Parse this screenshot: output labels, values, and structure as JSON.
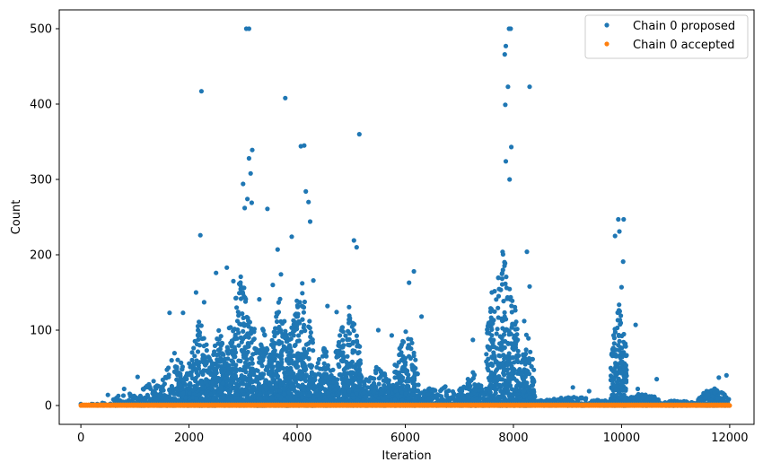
{
  "chart_data": {
    "type": "scatter",
    "xlabel": "Iteration",
    "ylabel": "Count",
    "xlim": [
      -400,
      12450
    ],
    "ylim": [
      -25,
      525
    ],
    "x_ticks": [
      0,
      2000,
      4000,
      6000,
      8000,
      10000,
      12000
    ],
    "y_ticks": [
      0,
      100,
      200,
      300,
      400,
      500
    ],
    "legend_position": "top-right",
    "series": [
      {
        "name": "Chain 0 proposed",
        "color": "#1f77b4",
        "points": [
          [
            2230,
            417
          ],
          [
            3060,
            500
          ],
          [
            3110,
            500
          ],
          [
            3170,
            339
          ],
          [
            3140,
            308
          ],
          [
            3110,
            328
          ],
          [
            3000,
            294
          ],
          [
            3080,
            274
          ],
          [
            3160,
            269
          ],
          [
            3450,
            261
          ],
          [
            3780,
            408
          ],
          [
            4070,
            344
          ],
          [
            4130,
            345
          ],
          [
            4160,
            284
          ],
          [
            4210,
            270
          ],
          [
            4240,
            244
          ],
          [
            5150,
            360
          ],
          [
            5050,
            219
          ],
          [
            5100,
            210
          ],
          [
            6160,
            178
          ],
          [
            6070,
            163
          ],
          [
            7840,
            466
          ],
          [
            7860,
            477
          ],
          [
            7920,
            500
          ],
          [
            7950,
            500
          ],
          [
            7900,
            423
          ],
          [
            7850,
            399
          ],
          [
            7960,
            343
          ],
          [
            7860,
            324
          ],
          [
            8300,
            423
          ],
          [
            7930,
            300
          ],
          [
            8250,
            204
          ],
          [
            9940,
            247
          ],
          [
            10040,
            247
          ],
          [
            10030,
            191
          ],
          [
            9880,
            225
          ],
          [
            9960,
            231
          ],
          [
            2210,
            226
          ],
          [
            3030,
            262
          ],
          [
            3640,
            207
          ],
          [
            3700,
            174
          ],
          [
            3900,
            224
          ],
          [
            1640,
            123
          ],
          [
            1890,
            123
          ],
          [
            2130,
            150
          ],
          [
            2280,
            137
          ],
          [
            2500,
            176
          ],
          [
            2700,
            183
          ],
          [
            2820,
            165
          ],
          [
            3300,
            141
          ],
          [
            3550,
            160
          ],
          [
            4300,
            166
          ],
          [
            4560,
            132
          ],
          [
            4730,
            124
          ],
          [
            5500,
            100
          ],
          [
            5750,
            93
          ],
          [
            6300,
            118
          ],
          [
            7250,
            87
          ],
          [
            7600,
            150
          ],
          [
            8300,
            158
          ],
          [
            8200,
            112
          ],
          [
            10260,
            107
          ],
          [
            10000,
            157
          ],
          [
            9400,
            19
          ],
          [
            9100,
            24
          ],
          [
            10300,
            22
          ],
          [
            10650,
            35
          ],
          [
            11800,
            37
          ],
          [
            11940,
            40
          ],
          [
            1050,
            38
          ],
          [
            800,
            22
          ],
          [
            500,
            14
          ]
        ],
        "clusters": [
          {
            "start": 0,
            "end": 600,
            "max": 5,
            "n": 40
          },
          {
            "start": 600,
            "end": 1100,
            "max": 20,
            "n": 70
          },
          {
            "start": 1100,
            "end": 1500,
            "max": 40,
            "n": 110
          },
          {
            "start": 1500,
            "end": 2000,
            "max": 75,
            "n": 200
          },
          {
            "start": 2000,
            "end": 2400,
            "max": 120,
            "n": 260
          },
          {
            "start": 2400,
            "end": 2700,
            "max": 110,
            "n": 220
          },
          {
            "start": 2700,
            "end": 3250,
            "max": 180,
            "n": 420
          },
          {
            "start": 3250,
            "end": 3500,
            "max": 110,
            "n": 200
          },
          {
            "start": 3500,
            "end": 3850,
            "max": 150,
            "n": 300
          },
          {
            "start": 3850,
            "end": 4300,
            "max": 170,
            "n": 360
          },
          {
            "start": 4300,
            "end": 4700,
            "max": 80,
            "n": 220
          },
          {
            "start": 4700,
            "end": 5200,
            "max": 140,
            "n": 340
          },
          {
            "start": 5200,
            "end": 5800,
            "max": 55,
            "n": 250
          },
          {
            "start": 5800,
            "end": 6250,
            "max": 110,
            "n": 260
          },
          {
            "start": 6250,
            "end": 7000,
            "max": 30,
            "n": 180
          },
          {
            "start": 7000,
            "end": 7500,
            "max": 45,
            "n": 200
          },
          {
            "start": 7500,
            "end": 8100,
            "max": 210,
            "n": 460
          },
          {
            "start": 8100,
            "end": 8400,
            "max": 100,
            "n": 200
          },
          {
            "start": 8400,
            "end": 9800,
            "max": 12,
            "n": 220
          },
          {
            "start": 9800,
            "end": 10100,
            "max": 140,
            "n": 260
          },
          {
            "start": 10100,
            "end": 10700,
            "max": 18,
            "n": 140
          },
          {
            "start": 10700,
            "end": 11400,
            "max": 8,
            "n": 100
          },
          {
            "start": 11400,
            "end": 12000,
            "max": 25,
            "n": 180
          }
        ]
      },
      {
        "name": "Chain 0 accepted",
        "color": "#ff7f0e",
        "values": [
          0,
          1
        ],
        "x_range": [
          0,
          12000
        ]
      }
    ]
  }
}
